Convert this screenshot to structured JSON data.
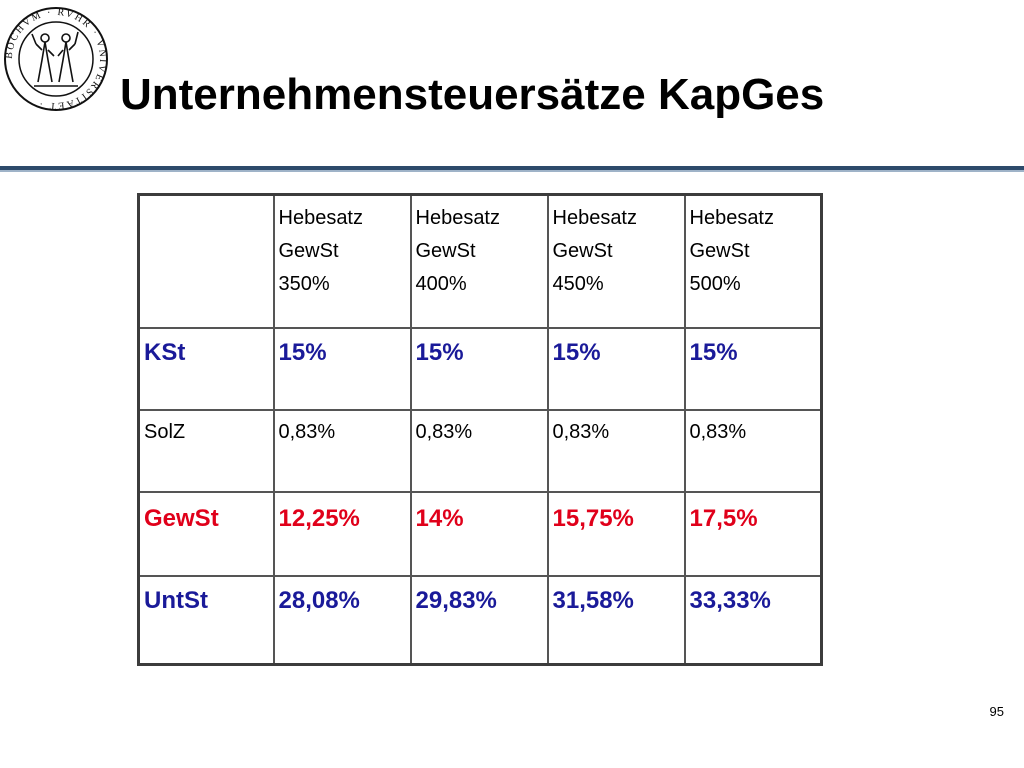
{
  "slide": {
    "title": "Unternehmensteuersätze KapGes",
    "page_number": "95",
    "seal": {
      "icon": "university-seal-icon",
      "text": "BOCHVM · RVHR · VNIVERSITAET"
    },
    "colors": {
      "rule_dark": "#2d4a6b",
      "rule_light": "#9fb3c8",
      "kst_untst": "#1a1a99",
      "gewst": "#e0001a"
    }
  },
  "table": {
    "header_cells": [
      {
        "line1": "Hebesatz",
        "line2": "GewSt",
        "line3": "350%"
      },
      {
        "line1": "Hebesatz",
        "line2": "GewSt",
        "line3": "400%"
      },
      {
        "line1": "Hebesatz",
        "line2": "GewSt",
        "line3": "450%"
      },
      {
        "line1": "Hebesatz",
        "line2": "GewSt",
        "line3": "500%"
      }
    ],
    "rows": [
      {
        "label": "KSt",
        "values": [
          "15%",
          "15%",
          "15%",
          "15%"
        ]
      },
      {
        "label": "SolZ",
        "values": [
          "0,83%",
          "0,83%",
          "0,83%",
          "0,83%"
        ]
      },
      {
        "label": "GewSt",
        "values": [
          "12,25%",
          "14%",
          "15,75%",
          "17,5%"
        ]
      },
      {
        "label": "UntSt",
        "values": [
          "28,08%",
          "29,83%",
          "31,58%",
          "33,33%"
        ]
      }
    ]
  }
}
